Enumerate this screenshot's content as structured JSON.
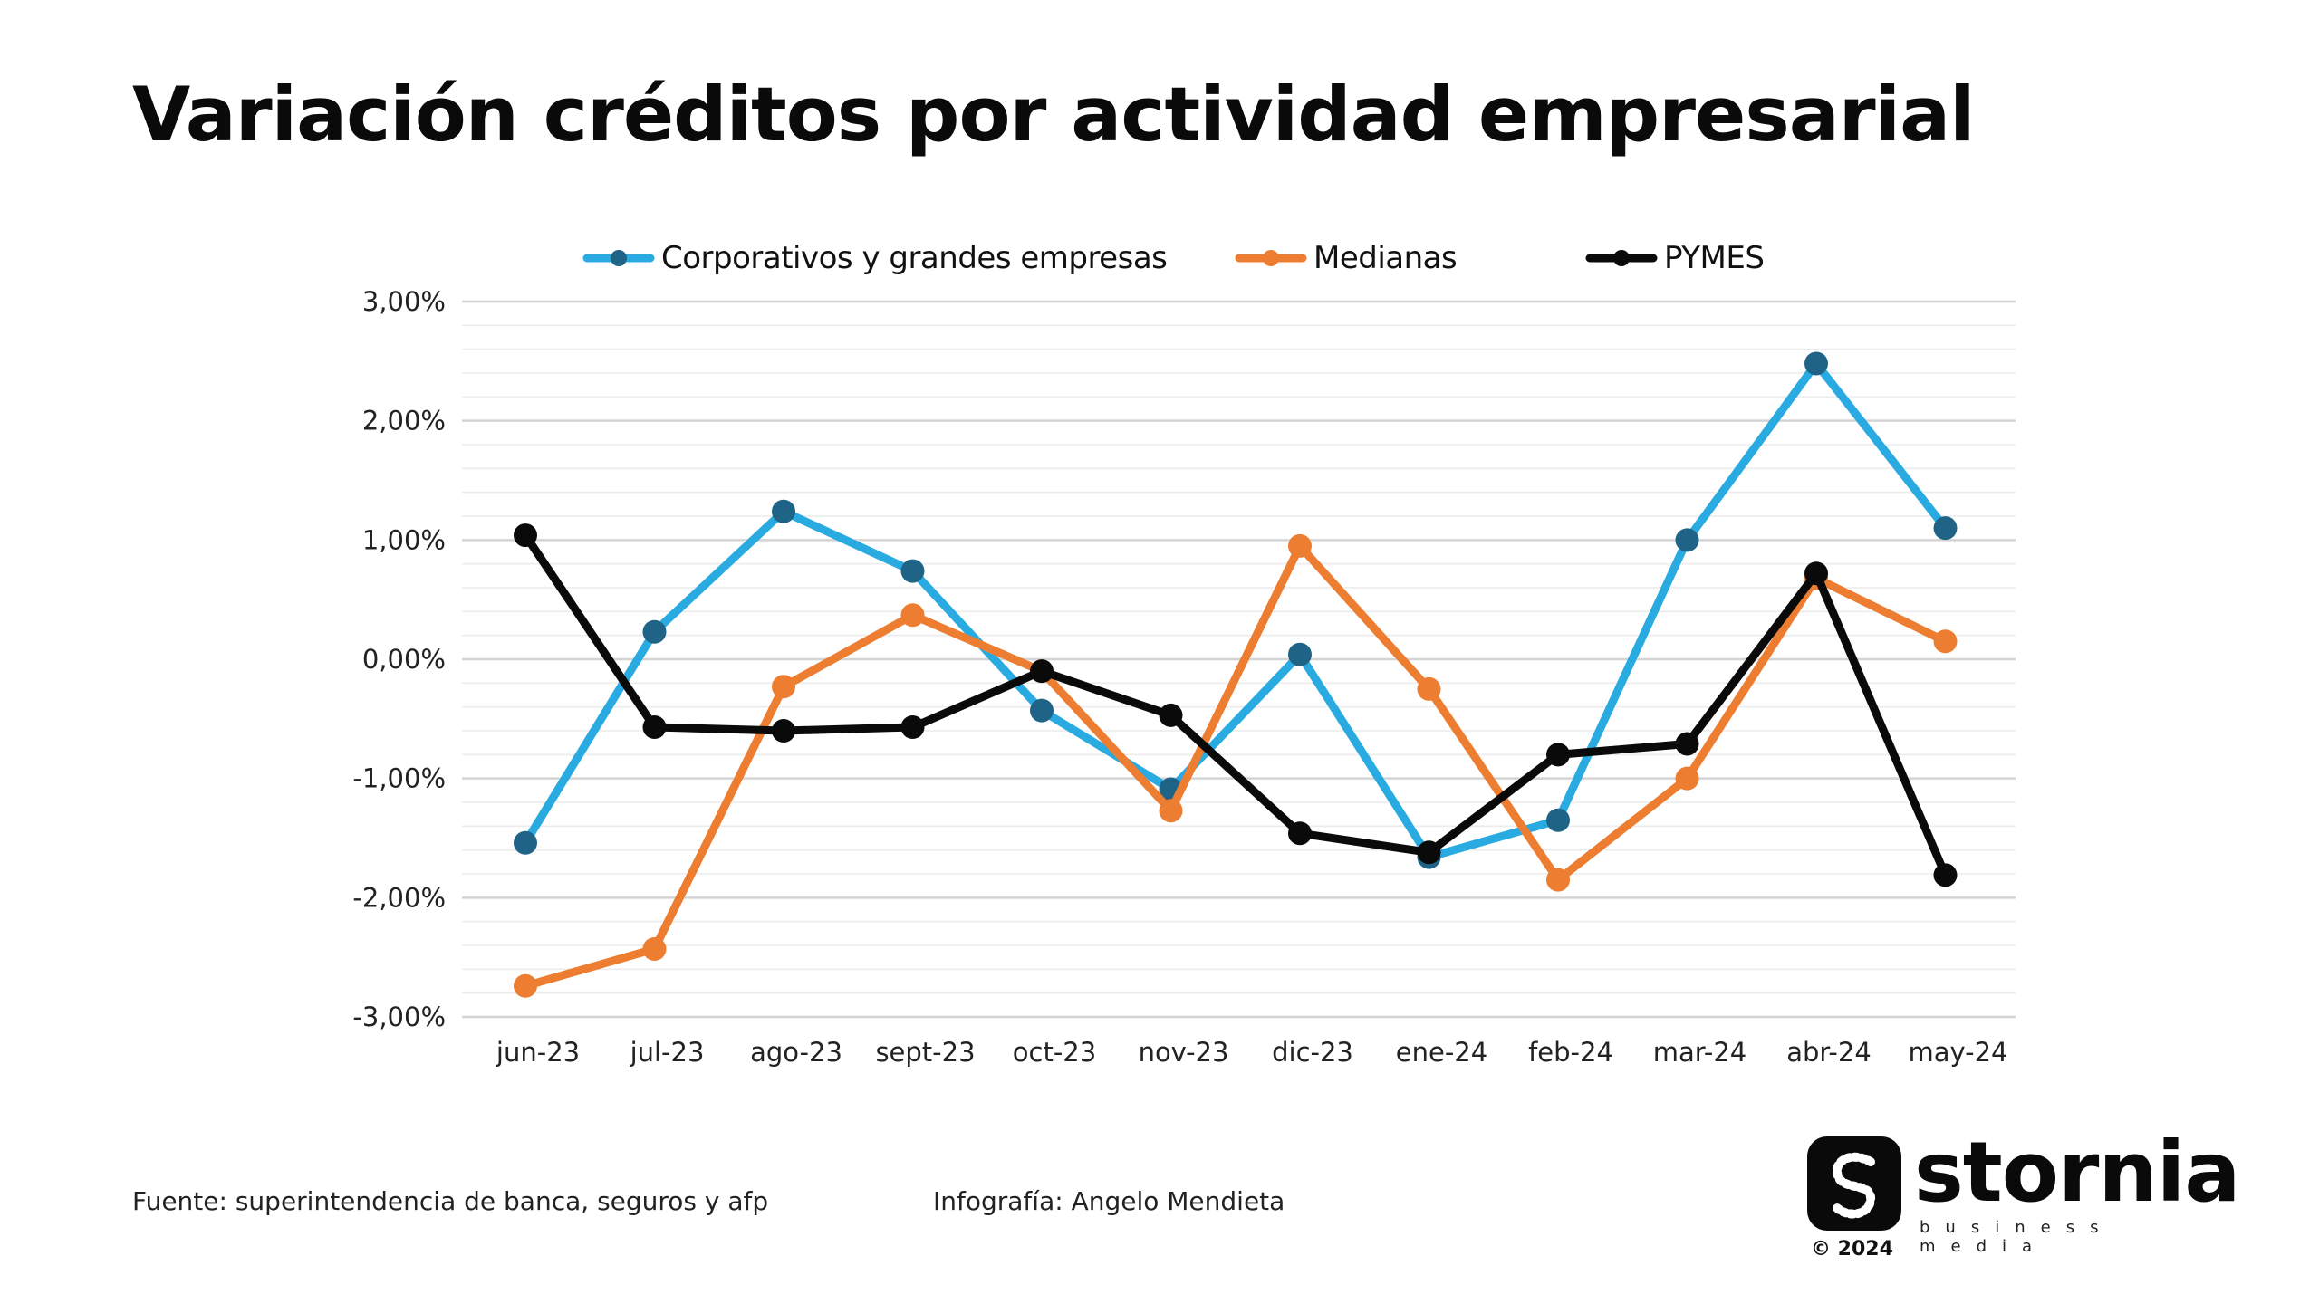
{
  "title": "Variación créditos por actividad empresarial",
  "chart_data": {
    "type": "line",
    "categories": [
      "jun-23",
      "jul-23",
      "ago-23",
      "sept-23",
      "oct-23",
      "nov-23",
      "dic-23",
      "ene-24",
      "feb-24",
      "mar-24",
      "abr-24",
      "may-24"
    ],
    "ylim": [
      -3,
      3
    ],
    "yticks": [
      3,
      2,
      1,
      0,
      -1,
      -2,
      -3
    ],
    "ytick_labels": [
      "3,00%",
      "2,00%",
      "1,00%",
      "0,00%",
      "-1,00%",
      "-2,00%",
      "-3,00%"
    ],
    "grid": true,
    "legend_position": "top",
    "series": [
      {
        "name": "Corporativos y grandes empresas",
        "color": "#29abe2",
        "marker_color": "#1f6386",
        "values": [
          -1.54,
          0.23,
          1.24,
          0.74,
          -0.43,
          -1.09,
          0.04,
          -1.66,
          -1.35,
          1.0,
          2.48,
          1.1
        ]
      },
      {
        "name": "Medianas",
        "color": "#ed7d31",
        "marker_color": "#ed7d31",
        "values": [
          -2.74,
          -2.43,
          -0.23,
          0.37,
          -0.1,
          -1.27,
          0.95,
          -0.25,
          -1.85,
          -1.0,
          0.68,
          0.15
        ]
      },
      {
        "name": "PYMES",
        "color": "#0a0a0a",
        "marker_color": "#0a0a0a",
        "values": [
          1.04,
          -0.57,
          -0.6,
          -0.57,
          -0.1,
          -0.47,
          -1.46,
          -1.62,
          -0.8,
          -0.71,
          0.72,
          -1.81
        ]
      }
    ]
  },
  "footer": {
    "source": "Fuente: superintendencia de banca, seguros y afp",
    "credit": "Infografía: Angelo Mendieta"
  },
  "logo": {
    "word": "stornia",
    "tagline": "business media",
    "copyright": "© 2024"
  }
}
